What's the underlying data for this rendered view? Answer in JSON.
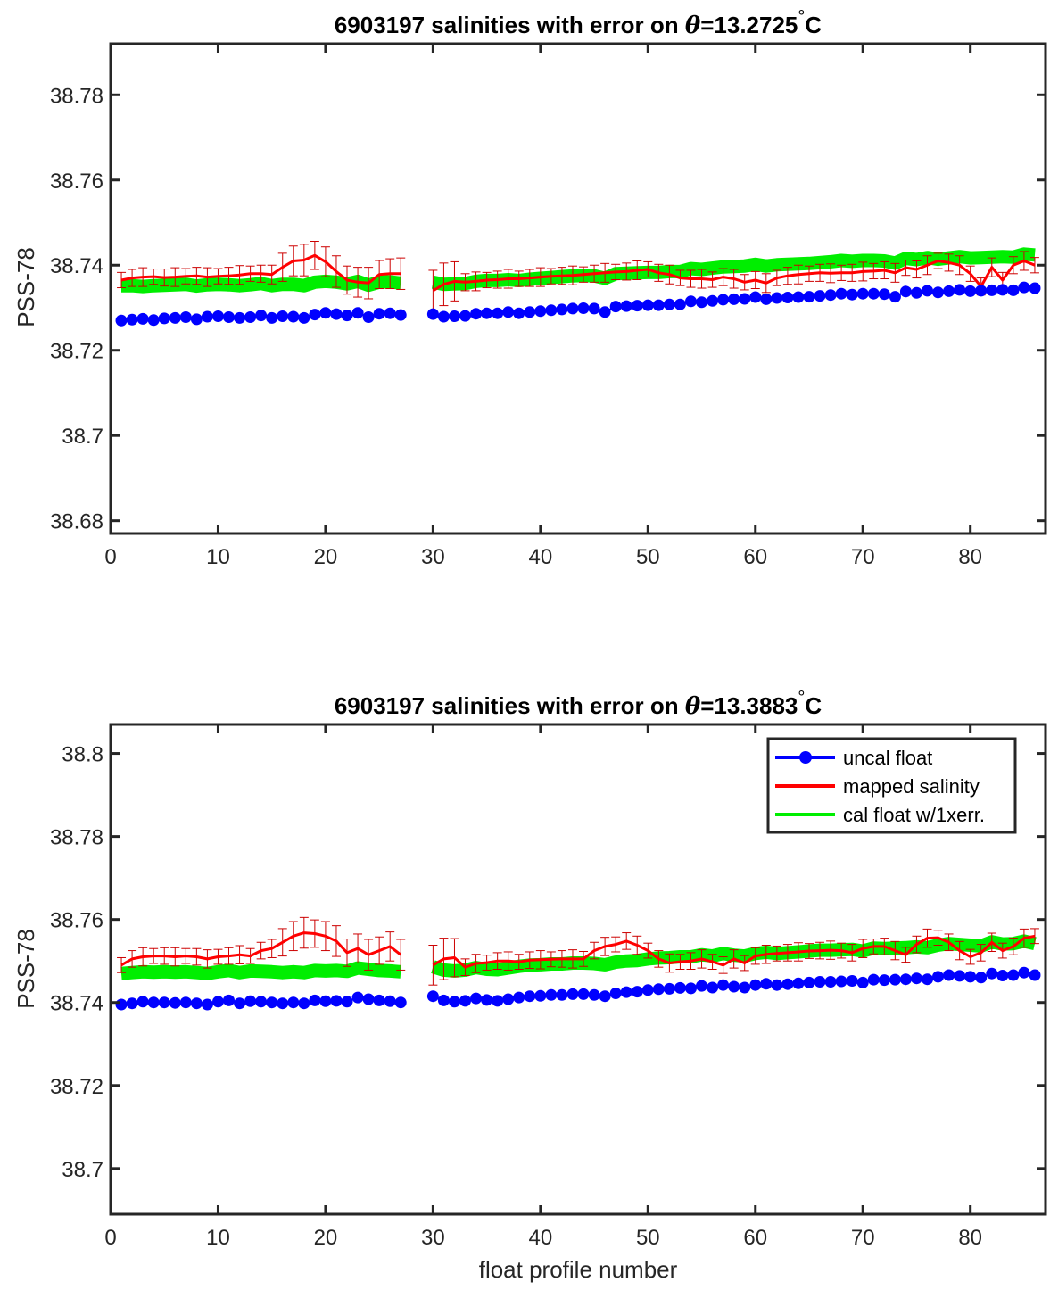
{
  "chart_data": [
    {
      "type": "line",
      "title_prefix": "6903197 salinities with error on ",
      "title_theta": "θ",
      "title_value": "=13.2725",
      "title_degree": "°",
      "title_unit": "C",
      "ylabel": "PSS-78",
      "xlabel": "",
      "xlim": [
        0,
        87
      ],
      "ylim": [
        38.677,
        38.792
      ],
      "xticks": [
        0,
        10,
        20,
        30,
        40,
        50,
        60,
        70,
        80
      ],
      "yticks": [
        38.68,
        38.7,
        38.72,
        38.74,
        38.76,
        38.78
      ],
      "ytick_labels": [
        "38.68",
        "38.7",
        "38.72",
        "38.74",
        "38.76",
        "38.78"
      ],
      "grid": false,
      "legend": false,
      "x": [
        1,
        2,
        3,
        4,
        5,
        6,
        7,
        8,
        9,
        10,
        11,
        12,
        13,
        14,
        15,
        16,
        17,
        18,
        19,
        20,
        21,
        22,
        23,
        24,
        25,
        26,
        27,
        null,
        30,
        31,
        32,
        33,
        34,
        35,
        36,
        37,
        38,
        39,
        40,
        41,
        42,
        43,
        44,
        45,
        46,
        47,
        48,
        49,
        50,
        51,
        52,
        53,
        54,
        55,
        56,
        57,
        58,
        59,
        60,
        61,
        62,
        63,
        64,
        65,
        66,
        67,
        68,
        69,
        70,
        71,
        72,
        73,
        74,
        75,
        76,
        77,
        78,
        79,
        80,
        81,
        82,
        83,
        84,
        85,
        86
      ],
      "series": [
        {
          "name": "uncal float",
          "color": "#0000ff",
          "values": [
            38.727,
            38.7272,
            38.7274,
            38.7271,
            38.7275,
            38.7276,
            38.7278,
            38.7273,
            38.7279,
            38.728,
            38.7278,
            38.7276,
            38.7278,
            38.7282,
            38.7276,
            38.728,
            38.7279,
            38.7276,
            38.7284,
            38.7288,
            38.7285,
            38.7282,
            38.7288,
            38.7278,
            38.7286,
            38.7287,
            38.7283,
            null,
            38.7285,
            38.7279,
            38.728,
            38.7281,
            38.7286,
            38.7287,
            38.7287,
            38.729,
            38.7287,
            38.729,
            38.7292,
            38.7294,
            38.7296,
            38.7298,
            38.7299,
            38.7298,
            38.729,
            38.7303,
            38.7304,
            38.7305,
            38.7306,
            38.7306,
            38.7308,
            38.7308,
            38.7315,
            38.7313,
            38.7316,
            38.7319,
            38.732,
            38.7321,
            38.7325,
            38.732,
            38.7323,
            38.7324,
            38.7325,
            38.7326,
            38.7328,
            38.733,
            38.7333,
            38.7331,
            38.7333,
            38.7333,
            38.7332,
            38.7326,
            38.7338,
            38.7335,
            38.734,
            38.7336,
            38.7339,
            38.7342,
            38.7339,
            38.734,
            38.7341,
            38.7342,
            38.7341,
            38.7348,
            38.7346
          ]
        },
        {
          "name": "mapped salinity",
          "color": "#ff0000",
          "values": [
            38.7365,
            38.737,
            38.7372,
            38.7373,
            38.7371,
            38.7372,
            38.7374,
            38.7375,
            38.7372,
            38.7374,
            38.7375,
            38.7377,
            38.738,
            38.738,
            38.7378,
            38.7395,
            38.741,
            38.7412,
            38.7423,
            38.7408,
            38.7385,
            38.7365,
            38.736,
            38.7358,
            38.7378,
            38.738,
            38.738,
            null,
            38.734,
            38.7355,
            38.7362,
            38.736,
            38.7362,
            38.7365,
            38.7366,
            38.7368,
            38.7368,
            38.737,
            38.7372,
            38.7374,
            38.7375,
            38.7376,
            38.7378,
            38.738,
            38.7382,
            38.7384,
            38.7385,
            38.7388,
            38.739,
            38.7382,
            38.7378,
            38.737,
            38.7368,
            38.7368,
            38.7366,
            38.7372,
            38.7368,
            38.736,
            38.7365,
            38.7358,
            38.737,
            38.7375,
            38.7378,
            38.738,
            38.7382,
            38.7381,
            38.7382,
            38.7382,
            38.7385,
            38.7386,
            38.7388,
            38.7382,
            38.7394,
            38.739,
            38.74,
            38.741,
            38.7406,
            38.74,
            38.738,
            38.735,
            38.7395,
            38.7365,
            38.74,
            38.741,
            38.74
          ]
        },
        {
          "name": "cal float w/1xerr.",
          "color": "#00ee00",
          "values": [
            38.7352,
            38.7352,
            38.735,
            38.7352,
            38.7353,
            38.7354,
            38.7355,
            38.7351,
            38.7354,
            38.7355,
            38.7354,
            38.7352,
            38.7354,
            38.7357,
            38.7352,
            38.7355,
            38.7355,
            38.7352,
            38.736,
            38.7362,
            38.736,
            38.7356,
            38.7362,
            38.7353,
            38.736,
            38.7361,
            38.7358,
            null,
            38.736,
            38.7355,
            38.7356,
            38.7357,
            38.7362,
            38.7364,
            38.7364,
            38.7366,
            38.7364,
            38.7367,
            38.7369,
            38.7371,
            38.7373,
            38.7375,
            38.7376,
            38.7375,
            38.7369,
            38.738,
            38.7381,
            38.7382,
            38.7383,
            38.7383,
            38.7385,
            38.7385,
            38.7392,
            38.739,
            38.7393,
            38.7396,
            38.7397,
            38.7398,
            38.7402,
            38.7398,
            38.7401,
            38.7402,
            38.7403,
            38.7404,
            38.7406,
            38.7408,
            38.7411,
            38.7409,
            38.7411,
            38.7411,
            38.741,
            38.7405,
            38.7416,
            38.7413,
            38.7418,
            38.7414,
            38.7417,
            38.742,
            38.7417,
            38.7418,
            38.7419,
            38.742,
            38.7419,
            38.7426,
            38.7424
          ]
        }
      ]
    },
    {
      "type": "line",
      "title_prefix": "6903197 salinities with error on ",
      "title_theta": "θ",
      "title_value": "=13.3883",
      "title_degree": "°",
      "title_unit": "C",
      "ylabel": "PSS-78",
      "xlabel": "float profile number",
      "xlim": [
        0,
        87
      ],
      "ylim": [
        38.689,
        38.807
      ],
      "xticks": [
        0,
        10,
        20,
        30,
        40,
        50,
        60,
        70,
        80
      ],
      "yticks": [
        38.7,
        38.72,
        38.74,
        38.76,
        38.78,
        38.8
      ],
      "ytick_labels": [
        "38.7",
        "38.72",
        "38.74",
        "38.76",
        "38.78",
        "38.8"
      ],
      "grid": false,
      "legend": "top-right",
      "x": [
        1,
        2,
        3,
        4,
        5,
        6,
        7,
        8,
        9,
        10,
        11,
        12,
        13,
        14,
        15,
        16,
        17,
        18,
        19,
        20,
        21,
        22,
        23,
        24,
        25,
        26,
        27,
        null,
        30,
        31,
        32,
        33,
        34,
        35,
        36,
        37,
        38,
        39,
        40,
        41,
        42,
        43,
        44,
        45,
        46,
        47,
        48,
        49,
        50,
        51,
        52,
        53,
        54,
        55,
        56,
        57,
        58,
        59,
        60,
        61,
        62,
        63,
        64,
        65,
        66,
        67,
        68,
        69,
        70,
        71,
        72,
        73,
        74,
        75,
        76,
        77,
        78,
        79,
        80,
        81,
        82,
        83,
        84,
        85,
        86
      ],
      "series": [
        {
          "name": "uncal float",
          "color": "#0000ff",
          "values": [
            38.7395,
            38.7398,
            38.7402,
            38.74,
            38.74,
            38.7399,
            38.74,
            38.7398,
            38.7395,
            38.7402,
            38.7405,
            38.7398,
            38.7403,
            38.7402,
            38.74,
            38.7398,
            38.74,
            38.7398,
            38.7405,
            38.7403,
            38.7404,
            38.7402,
            38.7412,
            38.7408,
            38.7405,
            38.7403,
            38.74,
            null,
            38.7415,
            38.7405,
            38.7402,
            38.7404,
            38.741,
            38.7406,
            38.7404,
            38.7408,
            38.7412,
            38.7415,
            38.7416,
            38.7418,
            38.7418,
            38.742,
            38.742,
            38.7418,
            38.7415,
            38.7422,
            38.7425,
            38.7426,
            38.743,
            38.7432,
            38.7433,
            38.7435,
            38.7434,
            38.744,
            38.7436,
            38.7442,
            38.7438,
            38.7436,
            38.7442,
            38.7445,
            38.7442,
            38.7444,
            38.7446,
            38.7448,
            38.745,
            38.745,
            38.7451,
            38.7452,
            38.7448,
            38.7455,
            38.7454,
            38.7455,
            38.7456,
            38.7458,
            38.7456,
            38.7462,
            38.7466,
            38.7464,
            38.7462,
            38.746,
            38.747,
            38.7465,
            38.7466,
            38.7472,
            38.7466
          ]
        },
        {
          "name": "mapped salinity",
          "color": "#ff0000",
          "values": [
            38.749,
            38.7505,
            38.751,
            38.7512,
            38.7512,
            38.751,
            38.7512,
            38.751,
            38.7505,
            38.751,
            38.7512,
            38.7515,
            38.7512,
            38.7525,
            38.753,
            38.7545,
            38.756,
            38.7568,
            38.7566,
            38.756,
            38.7548,
            38.752,
            38.753,
            38.7515,
            38.7525,
            38.7535,
            38.7515,
            null,
            38.749,
            38.7505,
            38.7508,
            38.7485,
            38.7494,
            38.7496,
            38.75,
            38.75,
            38.7498,
            38.7502,
            38.7503,
            38.7504,
            38.7505,
            38.7505,
            38.7505,
            38.7525,
            38.7535,
            38.754,
            38.7548,
            38.7538,
            38.7525,
            38.7505,
            38.7495,
            38.7498,
            38.75,
            38.7505,
            38.7498,
            38.749,
            38.7505,
            38.7495,
            38.7512,
            38.7516,
            38.7518,
            38.752,
            38.7522,
            38.7524,
            38.7525,
            38.7526,
            38.7525,
            38.752,
            38.753,
            38.7535,
            38.7535,
            38.7525,
            38.7515,
            38.754,
            38.7555,
            38.7556,
            38.7545,
            38.7525,
            38.751,
            38.752,
            38.7545,
            38.7525,
            38.7535,
            38.7555,
            38.756
          ]
        },
        {
          "name": "cal float w/1xerr.",
          "color": "#00ee00",
          "values": [
            38.747,
            38.7472,
            38.7474,
            38.7473,
            38.7474,
            38.7473,
            38.7474,
            38.7472,
            38.747,
            38.7474,
            38.7477,
            38.7472,
            38.7476,
            38.7475,
            38.7474,
            38.7472,
            38.7474,
            38.7472,
            38.7477,
            38.7476,
            38.7477,
            38.7475,
            38.7483,
            38.748,
            38.7477,
            38.7476,
            38.7474,
            null,
            38.7486,
            38.7478,
            38.7476,
            38.7478,
            38.7484,
            38.748,
            38.7479,
            38.7483,
            38.7487,
            38.749,
            38.7491,
            38.7493,
            38.7493,
            38.7495,
            38.7495,
            38.7494,
            38.7491,
            38.7497,
            38.75,
            38.7501,
            38.7505,
            38.7507,
            38.7508,
            38.751,
            38.751,
            38.7515,
            38.7512,
            38.7518,
            38.7514,
            38.7512,
            38.7518,
            38.7521,
            38.7518,
            38.752,
            38.7522,
            38.7524,
            38.7526,
            38.7526,
            38.7527,
            38.7528,
            38.7524,
            38.7531,
            38.753,
            38.7531,
            38.7532,
            38.7534,
            38.7532,
            38.7538,
            38.7542,
            38.754,
            38.7538,
            38.7536,
            38.7546,
            38.7541,
            38.7542,
            38.7548,
            38.7542
          ]
        }
      ]
    }
  ]
}
